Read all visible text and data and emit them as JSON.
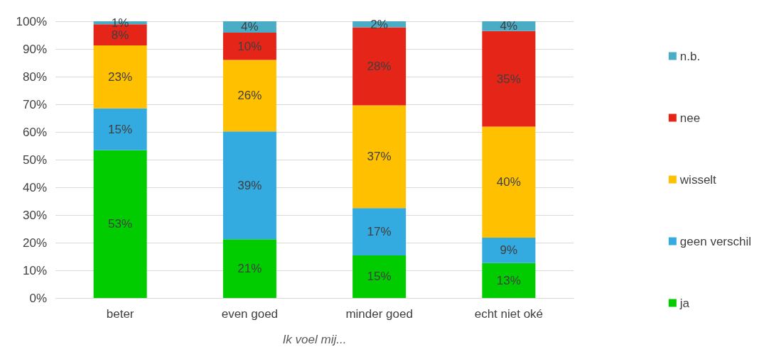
{
  "chart_data": {
    "type": "bar",
    "stacked": true,
    "xlabel": "Ik voel mij...",
    "categories": [
      "beter",
      "even goed",
      "minder goed",
      "echt niet oké"
    ],
    "series": [
      {
        "name": "ja",
        "color": "#00cc00",
        "values": [
          53.4,
          21.2,
          15.4,
          12.6
        ],
        "value_labels": [
          "53%",
          "21%",
          "15%",
          "13%"
        ]
      },
      {
        "name": "geen verschil",
        "color": "#33aae0",
        "values": [
          15.1,
          39.0,
          17.1,
          9.2
        ],
        "value_labels": [
          "15%",
          "39%",
          "17%",
          "9%"
        ]
      },
      {
        "name": "wisselt",
        "color": "#ffc000",
        "values": [
          22.8,
          25.8,
          37.1,
          40.1
        ],
        "value_labels": [
          "23%",
          "26%",
          "37%",
          "40%"
        ]
      },
      {
        "name": "nee",
        "color": "#e42518",
        "values": [
          7.6,
          9.9,
          28.2,
          34.6
        ],
        "value_labels": [
          "8%",
          "10%",
          "28%",
          "35%"
        ]
      },
      {
        "name": "n.b.",
        "color": "#4bacc6",
        "values": [
          1.1,
          4.1,
          2.2,
          3.5
        ],
        "value_labels": [
          "1%",
          "4%",
          "2%",
          "4%"
        ]
      }
    ],
    "ylim": [
      0,
      100
    ],
    "yticks": [
      {
        "value": 0,
        "label": "0%"
      },
      {
        "value": 10,
        "label": "10%"
      },
      {
        "value": 20,
        "label": "20%"
      },
      {
        "value": 30,
        "label": "30%"
      },
      {
        "value": 40,
        "label": "40%"
      },
      {
        "value": 50,
        "label": "50%"
      },
      {
        "value": 60,
        "label": "60%"
      },
      {
        "value": 70,
        "label": "70%"
      },
      {
        "value": 80,
        "label": "80%"
      },
      {
        "value": 90,
        "label": "90%"
      },
      {
        "value": 100,
        "label": "100%"
      }
    ],
    "grid": "y",
    "legend": "right"
  }
}
